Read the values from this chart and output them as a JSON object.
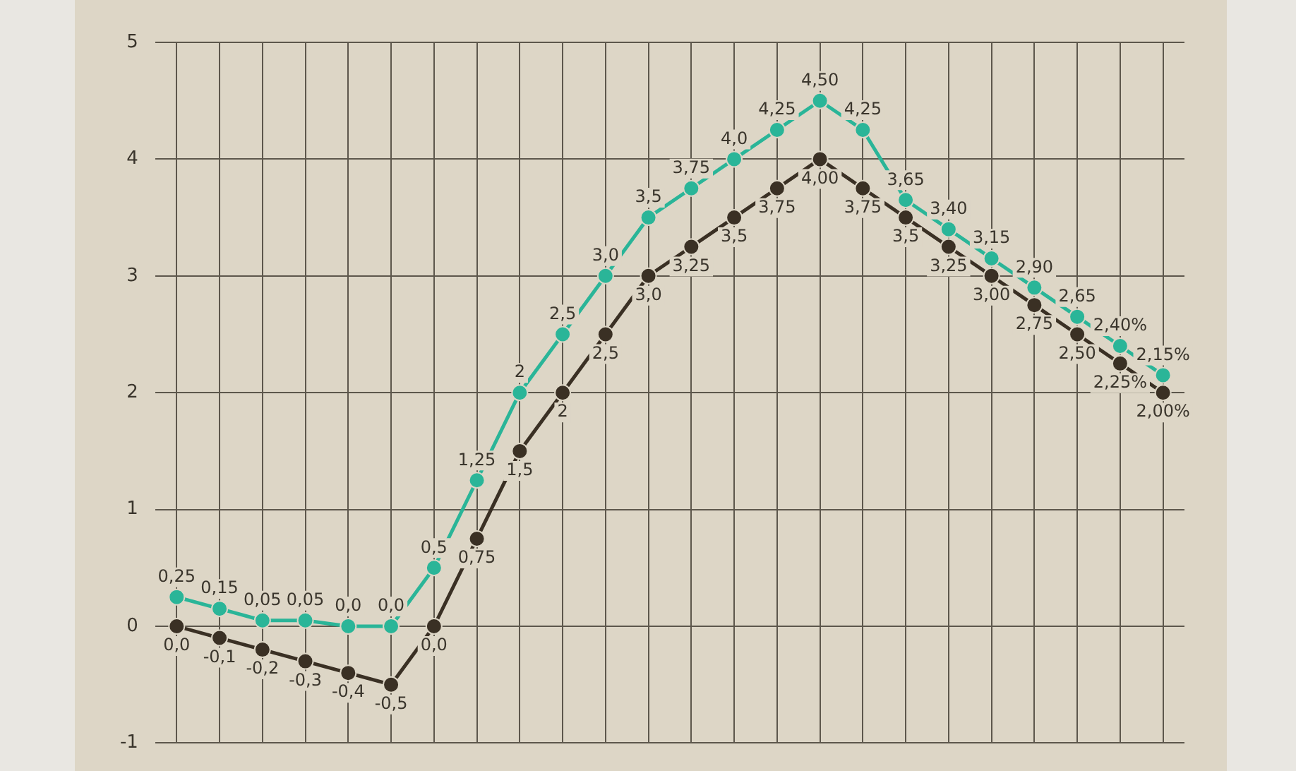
{
  "chart_data": {
    "type": "line",
    "categories": [
      null,
      null,
      null,
      null,
      null,
      null,
      null,
      null,
      null,
      null,
      null,
      null,
      null,
      null,
      null,
      null,
      null,
      null,
      null,
      null,
      null,
      null,
      null,
      null
    ],
    "series": [
      {
        "color": "#2ab598",
        "values": [
          0.25,
          0.15,
          0.05,
          0.05,
          0,
          0,
          0.5,
          1.25,
          2,
          2.5,
          3,
          3.5,
          3.75,
          4,
          4.25,
          4.5,
          4.25,
          3.65,
          3.4,
          3.15,
          2.9,
          2.65,
          2.4,
          2.15
        ],
        "value_labels": [
          "0,25",
          "0,15",
          "0,05",
          "0,05",
          "0,0",
          "0,0",
          "0,5",
          "1,25",
          "2",
          "2,5",
          "3,0",
          "3,5",
          "3,75",
          "4,0",
          "4,25",
          "4,50",
          "4,25",
          "3,65",
          "3,40",
          "3,15",
          "2,90",
          "2,65",
          "2,40%",
          "2,15%"
        ]
      },
      {
        "color": "#3a3024",
        "values": [
          0,
          -0.1,
          -0.2,
          -0.3,
          -0.4,
          -0.5,
          0,
          0.75,
          1.5,
          2,
          2.5,
          3,
          3.25,
          3.5,
          3.75,
          4,
          3.75,
          3.5,
          3.25,
          3,
          2.75,
          2.5,
          2.25,
          2
        ],
        "value_labels": [
          "0,0",
          "-0,1",
          "-0,2",
          "-0,3",
          "-0,4",
          "-0,5",
          "0,0",
          "0,75",
          "1,5",
          "2",
          "2,5",
          "3,0",
          "3,25",
          "3,5",
          "3,75",
          "4,00",
          "3,75",
          "3,5",
          "3,25",
          "3,00",
          "2,75",
          "2,50",
          "2,25%",
          "2,00%"
        ]
      }
    ],
    "ylim": [
      -1,
      5
    ],
    "yticks": [
      -1,
      0,
      1,
      2,
      3,
      4,
      5
    ],
    "grid": true,
    "legend": false,
    "marker": "circle",
    "line_style": "solid",
    "tick_labels": "y"
  }
}
